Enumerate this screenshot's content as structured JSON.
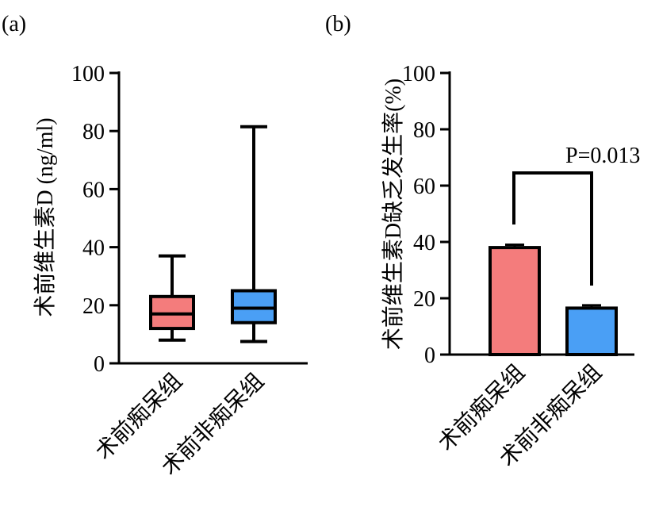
{
  "chart_data": [
    {
      "panel": "(a)",
      "type": "box",
      "title": "",
      "ylabel": "术前维生素D (ng/ml)",
      "xlabel": "",
      "ylim": [
        0,
        100
      ],
      "yticks": [
        "0",
        "20",
        "40",
        "60",
        "80",
        "100"
      ],
      "categories": [
        "术前痴呆组",
        "术前非痴呆组"
      ],
      "boxes": [
        {
          "name": "术前痴呆组",
          "min": 8,
          "q1": 12,
          "median": 17,
          "q3": 23,
          "max": 37,
          "color": "#f47c7c"
        },
        {
          "name": "术前非痴呆组",
          "min": 7.5,
          "q1": 14,
          "median": 19,
          "q3": 25,
          "max": 81.5,
          "color": "#4a9ff5"
        }
      ]
    },
    {
      "panel": "(b)",
      "type": "bar",
      "title": "",
      "ylabel": "术前维生素D缺乏发生率(%)",
      "xlabel": "",
      "ylim": [
        0,
        100
      ],
      "yticks": [
        "0",
        "20",
        "40",
        "60",
        "80",
        "100"
      ],
      "categories": [
        "术前痴呆组",
        "术前非痴呆组"
      ],
      "values": [
        38,
        16.5
      ],
      "errors": [
        1,
        1
      ],
      "colors": [
        "#f47c7c",
        "#4a9ff5"
      ],
      "annotation": "P=0.013"
    }
  ]
}
